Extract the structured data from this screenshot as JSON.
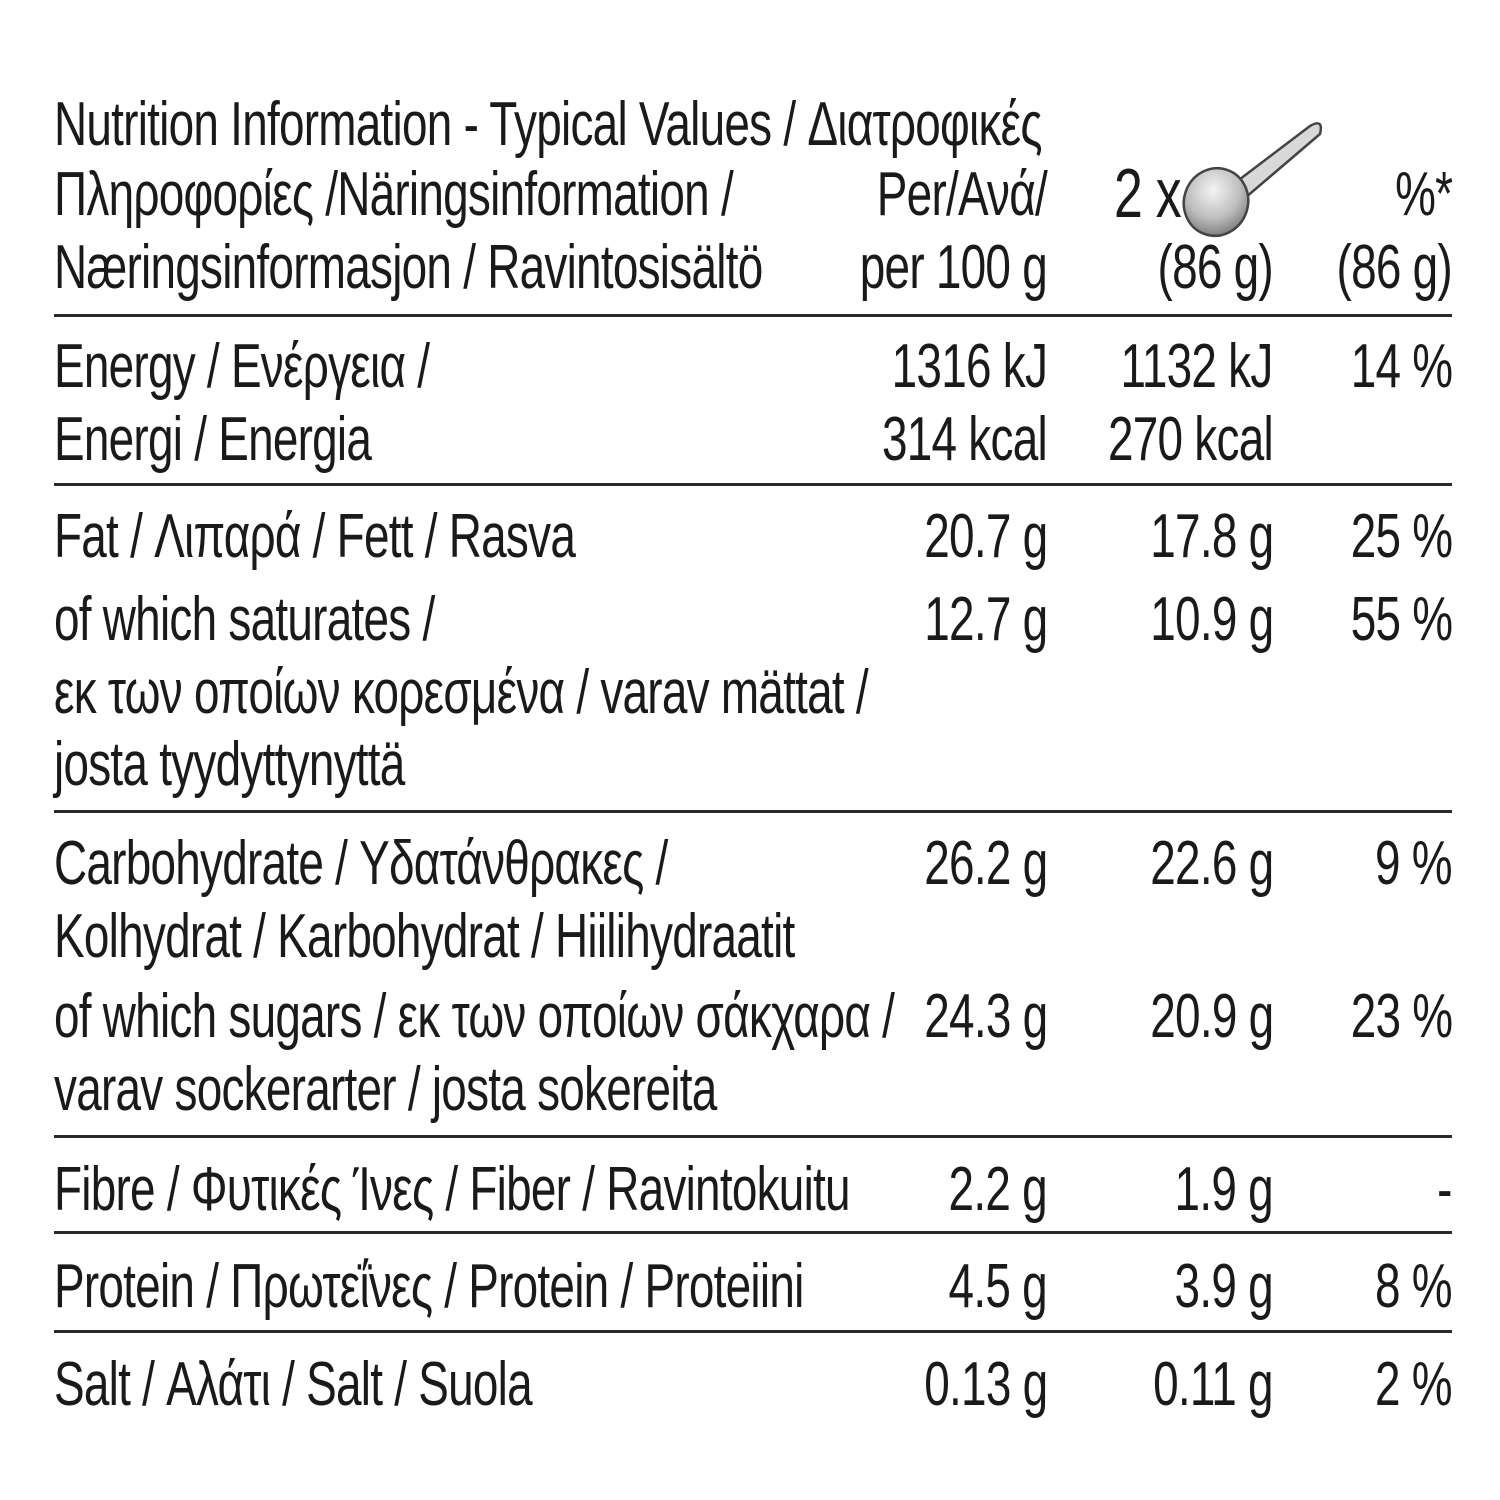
{
  "header": {
    "title_lines": [
      "Nutrition Information - Typical Values / Διατροφικές",
      "Πληροφορίες /Näringsinformation /",
      "Næringsinformasjon / Ravintosisältö"
    ],
    "col1": [
      "Per/Ανά/",
      "per 100 g"
    ],
    "col2": {
      "multiplier": "2 x",
      "icon": "spoon-icon",
      "amount": "(86 g)"
    },
    "col3": [
      "%*",
      "(86 g)"
    ]
  },
  "rows": [
    {
      "label": [
        "Energy / Ενέργεια /",
        "Energi / Energia"
      ],
      "per100": [
        "1316 kJ",
        "314 kcal"
      ],
      "serving": [
        "1132 kJ",
        "270 kcal"
      ],
      "ri": "14 %"
    },
    {
      "label": [
        "Fat / Λιπαρά / Fett / Rasva"
      ],
      "per100": "20.7 g",
      "serving": "17.8 g",
      "ri": "25 %"
    },
    {
      "label": [
        "of which saturates /",
        "εκ των οποίων κορεσμένα / varav mättat /",
        "josta tyydyttynyttä"
      ],
      "per100": "12.7 g",
      "serving": "10.9 g",
      "ri": "55 %"
    },
    {
      "label": [
        "Carbohydrate / Υδατάνθρακες /",
        "Kolhydrat / Karbohydrat / Hiilihydraatit"
      ],
      "per100": "26.2 g",
      "serving": "22.6 g",
      "ri": "9 %"
    },
    {
      "label": [
        "of which sugars / εκ των οποίων σάκχαρα /",
        "varav sockerarter / josta sokereita"
      ],
      "per100": "24.3 g",
      "serving": "20.9 g",
      "ri": "23 %"
    },
    {
      "label": [
        "Fibre / Φυτικές Ίνες / Fiber / Ravintokuitu"
      ],
      "per100": "2.2 g",
      "serving": "1.9 g",
      "ri": "-"
    },
    {
      "label": [
        "Protein / Πρωτεΐνες / Protein / Proteiini"
      ],
      "per100": "4.5 g",
      "serving": "3.9 g",
      "ri": "8 %"
    },
    {
      "label": [
        "Salt / Αλάτι / Salt / Suola"
      ],
      "per100": "0.13 g",
      "serving": "0.11 g",
      "ri": "2 %"
    }
  ]
}
